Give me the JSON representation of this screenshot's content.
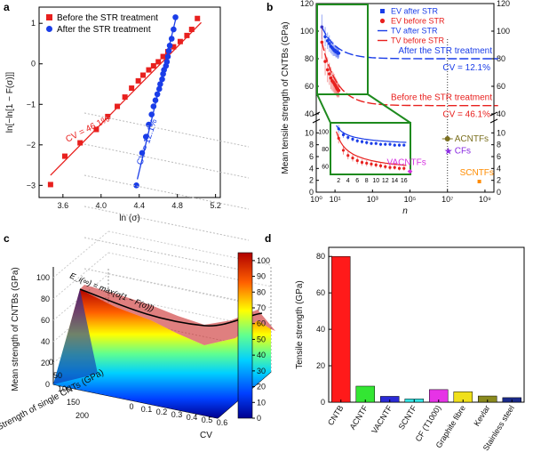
{
  "chart_data": [
    {
      "panel": "a",
      "type": "scatter",
      "xlabel": "ln (σ)",
      "ylabel": "ln[−ln[1 − F(σ)]]",
      "xlim": [
        3.35,
        5.25
      ],
      "ylim": [
        -3.3,
        1.4
      ],
      "xticks": [
        3.6,
        4.0,
        4.4,
        4.8,
        5.2
      ],
      "yticks": [
        -3,
        -2,
        -1,
        0,
        1
      ],
      "xtick_labels": [
        "3.6",
        "4.0",
        "4.4",
        "4.8",
        "5.2"
      ],
      "ytick_labels": [
        "−3",
        "−2",
        "−1",
        "0",
        "1"
      ],
      "legend": "top-left",
      "series": [
        {
          "name": "Before the STR treatment",
          "marker": "square",
          "color": "#e8201e",
          "x": [
            3.47,
            3.62,
            3.78,
            3.95,
            4.07,
            4.17,
            4.25,
            4.32,
            4.39,
            4.44,
            4.5,
            4.55,
            4.6,
            4.65,
            4.7,
            4.76,
            4.83,
            4.9,
            4.95,
            5.01
          ],
          "y": [
            -2.98,
            -2.28,
            -1.95,
            -1.62,
            -1.3,
            -1.05,
            -0.82,
            -0.6,
            -0.42,
            -0.28,
            -0.15,
            -0.05,
            0.05,
            0.18,
            0.3,
            0.42,
            0.55,
            0.7,
            0.85,
            1.12
          ],
          "fit": [
            [
              3.47,
              -2.75
            ],
            [
              5.05,
              1.02
            ]
          ],
          "cv_label": "CV = 46.1%"
        },
        {
          "name": "After the STR treatment",
          "marker": "circle",
          "color": "#1a3de8",
          "x": [
            4.37,
            4.43,
            4.47,
            4.5,
            4.53,
            4.55,
            4.57,
            4.59,
            4.61,
            4.62,
            4.64,
            4.65,
            4.66,
            4.68,
            4.69,
            4.7,
            4.71,
            4.72,
            4.74,
            4.76,
            4.78
          ],
          "y": [
            -3.0,
            -2.2,
            -1.8,
            -1.5,
            -1.25,
            -1.05,
            -0.9,
            -0.75,
            -0.62,
            -0.5,
            -0.38,
            -0.25,
            -0.15,
            -0.05,
            0.05,
            0.18,
            0.32,
            0.45,
            0.62,
            0.85,
            1.15
          ],
          "fit": [
            [
              4.38,
              -2.85
            ],
            [
              4.79,
              1.18
            ]
          ],
          "cv_label": "CV = 12.1%"
        }
      ]
    },
    {
      "panel": "b",
      "type": "line",
      "xlabel": "n",
      "ylabel": "Mean tensile strength of CNTBs (GPa)",
      "x_scale": "log",
      "xlim": [
        1,
        3000000000
      ],
      "xticks": [
        1,
        10,
        1000,
        100000,
        10000000,
        1000000000
      ],
      "xtick_labels": [
        "10⁰",
        "10¹",
        "10³",
        "10⁵",
        "10⁷",
        "10⁹"
      ],
      "upper_ylim": [
        40,
        120
      ],
      "upper_yticks": [
        40,
        60,
        80,
        100,
        120
      ],
      "lower_ylim": [
        0,
        12
      ],
      "lower_yticks": [
        0,
        2,
        4,
        6,
        8,
        10
      ],
      "legend": [
        "EV after STR",
        "EV before STR",
        "TV after STR",
        "TV before STR"
      ],
      "series": [
        {
          "name": "EV after STR",
          "color": "#1a3de8",
          "n": [
            2,
            3,
            4,
            5,
            6,
            7,
            8,
            9,
            10,
            11,
            12,
            13,
            14,
            15,
            16
          ],
          "values": [
            103,
            96,
            93,
            91,
            89,
            88,
            87,
            86,
            86,
            85,
            85,
            85,
            84,
            84,
            84
          ],
          "errors": [
            9,
            7,
            6,
            6,
            5,
            5,
            5,
            4,
            4,
            4,
            4,
            4,
            4,
            4,
            3
          ]
        },
        {
          "name": "EV before STR",
          "color": "#e8201e",
          "n": [
            2,
            3,
            4,
            5,
            6,
            7,
            8,
            9,
            10,
            11,
            12,
            13,
            14,
            15,
            16
          ],
          "values": [
            92,
            78,
            72,
            69,
            66,
            64,
            63,
            62,
            61,
            60,
            59,
            58,
            58,
            57,
            57
          ],
          "errors": [
            12,
            10,
            9,
            8,
            8,
            7,
            7,
            7,
            6,
            6,
            6,
            6,
            5,
            5,
            5
          ]
        },
        {
          "name": "TV after STR",
          "color": "#1a3de8",
          "asymptote": 80,
          "label": "After the STR treatment",
          "cv_label": "CV = 12.1%"
        },
        {
          "name": "TV before STR",
          "color": "#e8201e",
          "asymptote": 46,
          "label": "Before the STR treatment",
          "cv_label": "CV = 46.1%"
        }
      ],
      "annotations": [
        {
          "label": "ACNTFs",
          "n": 10000000,
          "value": 9,
          "color": "#7b7020"
        },
        {
          "label": "CFs",
          "n": 10000000,
          "value": 7,
          "color": "#8a2be2"
        },
        {
          "label": "VACNTFs",
          "n": 100000,
          "value": 3.5,
          "color": "#d633e0"
        },
        {
          "label": "SCNTFs",
          "n": 500000000,
          "value": 1.8,
          "color": "#ff8c00"
        }
      ],
      "inset_xticks": [
        2,
        4,
        6,
        8,
        10,
        12,
        14,
        16
      ],
      "inset_xtick_labels": [
        "2",
        "4",
        "6",
        "8",
        "10",
        "12",
        "14",
        "16"
      ],
      "inset_yticks": [
        60,
        80,
        100
      ],
      "inset_ytick_labels": [
        "60",
        "80",
        "100"
      ]
    },
    {
      "panel": "c",
      "type": "surface",
      "xlabel": "CV",
      "ylabel": "Strength of single CNTs (GPa)",
      "zlabel": "Mean strength of CNTBs (GPa)",
      "xticks": [
        0,
        0.1,
        0.2,
        0.3,
        0.4,
        0.5,
        0.6
      ],
      "xtick_labels": [
        "0",
        "0.1",
        "0.2",
        "0.3",
        "0.4",
        "0.5",
        "0.6"
      ],
      "yticks": [
        0,
        50,
        100,
        150,
        200
      ],
      "zticks": [
        0,
        20,
        40,
        60,
        80,
        100
      ],
      "colorbar_ticks": [
        0,
        10,
        20,
        30,
        40,
        50,
        60,
        70,
        80,
        90,
        100
      ],
      "equation": "E_i(∞) = max(σ[1 − F(σ)])"
    },
    {
      "panel": "d",
      "type": "bar",
      "ylabel": "Tensile strength (GPa)",
      "ylim": [
        0,
        85
      ],
      "yticks": [
        0,
        20,
        40,
        60,
        80
      ],
      "categories": [
        "CNTB",
        "ACNTF",
        "VACNTF",
        "SCNTF",
        "CF (T1000)",
        "Graphite fibre",
        "Kevlar",
        "Stainless steel"
      ],
      "values": [
        80,
        8.8,
        3.2,
        1.8,
        6.9,
        5.7,
        3.4,
        2.5
      ],
      "colors": [
        "#ff1a1a",
        "#33e633",
        "#2a2ad6",
        "#33e6e6",
        "#e633e6",
        "#f0e01a",
        "#8a8a1e",
        "#1a2a8a"
      ]
    }
  ]
}
